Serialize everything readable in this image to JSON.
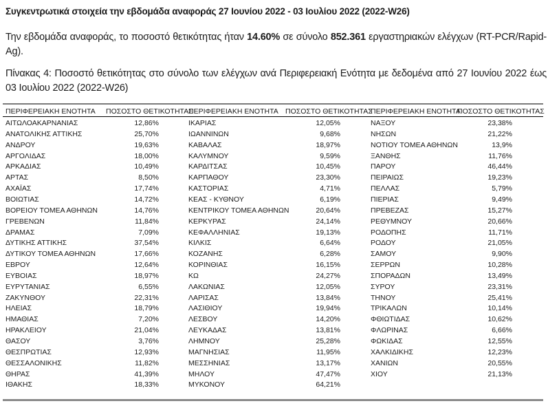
{
  "title": "Συγκεντρωτικά στοιχεία την εβδομάδα αναφοράς 27 Ιουνίου 2022 - 03 Ιουλίου 2022 (2022-W26)",
  "summary": {
    "text_before": "Την εβδομάδα αναφοράς, το ποσοστό θετικότητας ήταν ",
    "positivity": "14.60%",
    "text_middle": " σε σύνολο ",
    "total_tests": "852.361",
    "text_after": " εργαστηριακών ελέγχων (RT-PCR/Rapid-Ag)."
  },
  "caption": "Πίνακας 4: Ποσοστό θετικότητας στο σύνολο των ελέγχων ανά Περιφερειακή Ενότητα με δεδομένα από 27 Ιουνίου 2022 έως 03 Ιουλίου 2022 (2022-W26)",
  "table": {
    "headers": [
      "ΠΕΡΙΦΕΡΕΙΑΚΗ ΕΝΟΤΗΤΑ",
      "ΠΟΣΟΣΤΟ ΘΕΤΙΚΟΤΗΤΑΣ"
    ],
    "groups": [
      [
        [
          "ΑΙΤΩΛΟΑΚΑΡΝΑΝΙΑΣ",
          "12,86%"
        ],
        [
          "ΑΝΑΤΟΛΙΚΗΣ ΑΤΤΙΚΗΣ",
          "25,70%"
        ],
        [
          "ΑΝΔΡΟΥ",
          "19,63%"
        ],
        [
          "ΑΡΓΟΛΙΔΑΣ",
          "18,00%"
        ],
        [
          "ΑΡΚΑΔΙΑΣ",
          "10,49%"
        ],
        [
          "ΑΡΤΑΣ",
          "8,50%"
        ],
        [
          "ΑΧΑΪΑΣ",
          "17,74%"
        ],
        [
          "ΒΟΙΩΤΙΑΣ",
          "14,72%"
        ],
        [
          "ΒΟΡΕΙΟΥ ΤΟΜΕΑ ΑΘΗΝΩΝ",
          "14,76%"
        ],
        [
          "ΓΡΕΒΕΝΩΝ",
          "11,84%"
        ],
        [
          "ΔΡΑΜΑΣ",
          "7,09%"
        ],
        [
          "ΔΥΤΙΚΗΣ ΑΤΤΙΚΗΣ",
          "37,54%"
        ],
        [
          "ΔΥΤΙΚΟΥ ΤΟΜΕΑ ΑΘΗΝΩΝ",
          "17,66%"
        ],
        [
          "ΕΒΡΟΥ",
          "12,64%"
        ],
        [
          "ΕΥΒΟΙΑΣ",
          "18,97%"
        ],
        [
          "ΕΥΡΥΤΑΝΙΑΣ",
          "6,55%"
        ],
        [
          "ΖΑΚΥΝΘΟΥ",
          "22,31%"
        ],
        [
          "ΗΛΕΙΑΣ",
          "18,79%"
        ],
        [
          "ΗΜΑΘΙΑΣ",
          "7,20%"
        ],
        [
          "ΗΡΑΚΛΕΙΟΥ",
          "21,04%"
        ],
        [
          "ΘΑΣΟΥ",
          "3,76%"
        ],
        [
          "ΘΕΣΠΡΩΤΙΑΣ",
          "12,93%"
        ],
        [
          "ΘΕΣΣΑΛΟΝΙΚΗΣ",
          "11,82%"
        ],
        [
          "ΘΗΡΑΣ",
          "41,39%"
        ],
        [
          "ΙΘΑΚΗΣ",
          "18,33%"
        ]
      ],
      [
        [
          "ΙΚΑΡΙΑΣ",
          "12,05%"
        ],
        [
          "ΙΩΑΝΝΙΝΩΝ",
          "9,68%"
        ],
        [
          "ΚΑΒΑΛΑΣ",
          "18,97%"
        ],
        [
          "ΚΑΛΥΜΝΟΥ",
          "9,59%"
        ],
        [
          "ΚΑΡΔΙΤΣΑΣ",
          "10,45%"
        ],
        [
          "ΚΑΡΠΑΘΟΥ",
          "23,30%"
        ],
        [
          "ΚΑΣΤΟΡΙΑΣ",
          "4,71%"
        ],
        [
          "ΚΕΑΣ - ΚΥΘΝΟΥ",
          "6,19%"
        ],
        [
          "ΚΕΝΤΡΙΚΟΥ ΤΟΜΕΑ ΑΘΗΝΩΝ",
          "20,64%"
        ],
        [
          "ΚΕΡΚΥΡΑΣ",
          "24,14%"
        ],
        [
          "ΚΕΦΑΛΛΗΝΙΑΣ",
          "19,13%"
        ],
        [
          "ΚΙΛΚΙΣ",
          "6,64%"
        ],
        [
          "ΚΟΖΑΝΗΣ",
          "6,28%"
        ],
        [
          "ΚΟΡΙΝΘΙΑΣ",
          "16,15%"
        ],
        [
          "ΚΩ",
          "24,27%"
        ],
        [
          "ΛΑΚΩΝΙΑΣ",
          "12,05%"
        ],
        [
          "ΛΑΡΙΣΑΣ",
          "13,84%"
        ],
        [
          "ΛΑΣΙΘΙΟΥ",
          "19,94%"
        ],
        [
          "ΛΕΣΒΟΥ",
          "14,20%"
        ],
        [
          "ΛΕΥΚΑΔΑΣ",
          "13,81%"
        ],
        [
          "ΛΗΜΝΟΥ",
          "25,28%"
        ],
        [
          "ΜΑΓΝΗΣΙΑΣ",
          "11,95%"
        ],
        [
          "ΜΕΣΣΗΝΙΑΣ",
          "13,17%"
        ],
        [
          "ΜΗΛΟΥ",
          "47,47%"
        ],
        [
          "ΜΥΚΟΝΟΥ",
          "64,21%"
        ]
      ],
      [
        [
          "ΝΑΞΟΥ",
          "23,38%"
        ],
        [
          "ΝΗΣΩΝ",
          "21,22%"
        ],
        [
          "ΝΟΤΙΟΥ ΤΟΜΕΑ ΑΘΗΝΩΝ",
          "13,9%"
        ],
        [
          "ΞΑΝΘΗΣ",
          "11,76%"
        ],
        [
          "ΠΑΡΟΥ",
          "46,44%"
        ],
        [
          "ΠΕΙΡΑΙΩΣ",
          "19,23%"
        ],
        [
          "ΠΕΛΛΑΣ",
          "5,79%"
        ],
        [
          "ΠΙΕΡΙΑΣ",
          "9,49%"
        ],
        [
          "ΠΡΕΒΕΖΑΣ",
          "15,27%"
        ],
        [
          "ΡΕΘΥΜΝΟΥ",
          "20,66%"
        ],
        [
          "ΡΟΔΟΠΗΣ",
          "11,71%"
        ],
        [
          "ΡΟΔΟΥ",
          "21,05%"
        ],
        [
          "ΣΑΜΟΥ",
          "9,90%"
        ],
        [
          "ΣΕΡΡΩΝ",
          "10,28%"
        ],
        [
          "ΣΠΟΡΑΔΩΝ",
          "13,49%"
        ],
        [
          "ΣΥΡΟΥ",
          "23,31%"
        ],
        [
          "ΤΗΝΟΥ",
          "25,41%"
        ],
        [
          "ΤΡΙΚΑΛΩΝ",
          "10,14%"
        ],
        [
          "ΦΘΙΩΤΙΔΑΣ",
          "10,62%"
        ],
        [
          "ΦΛΩΡΙΝΑΣ",
          "6,66%"
        ],
        [
          "ΦΩΚΙΔΑΣ",
          "12,55%"
        ],
        [
          "ΧΑΛΚΙΔΙΚΗΣ",
          "12,23%"
        ],
        [
          "ΧΑΝΙΩΝ",
          "20,55%"
        ],
        [
          "ΧΙΟΥ",
          "21,13%"
        ]
      ]
    ]
  }
}
